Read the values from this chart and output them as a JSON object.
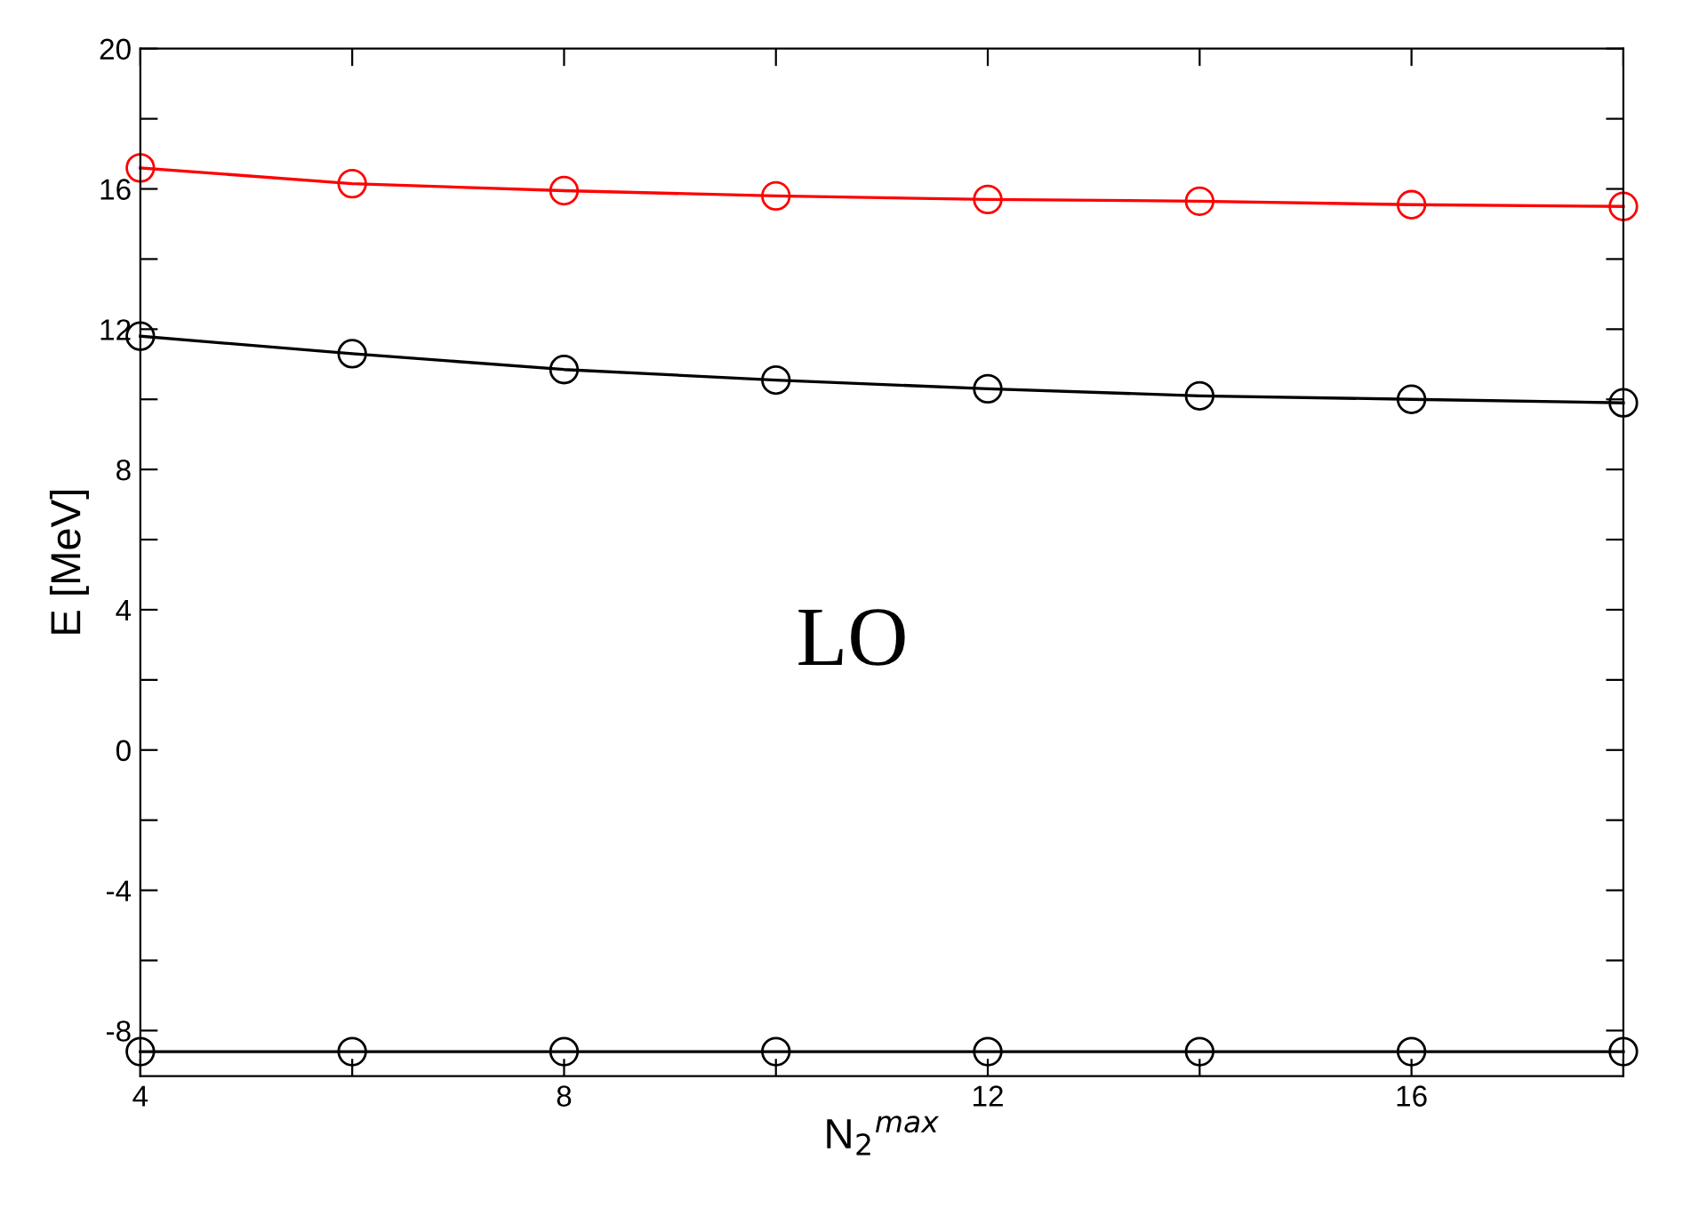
{
  "chart_data": {
    "type": "line",
    "xlabel": "N$_{2}$$^{max}$",
    "ylabel": "E [MeV]",
    "annotations": [
      "LO"
    ],
    "x": [
      4,
      6,
      8,
      10,
      12,
      14,
      16,
      18
    ],
    "series": [
      {
        "color": "#ff0000",
        "values": [
          16.6,
          16.15,
          15.95,
          15.8,
          15.7,
          15.65,
          15.55,
          15.5
        ]
      },
      {
        "color": "#000000",
        "values": [
          11.8,
          11.3,
          10.85,
          10.55,
          10.3,
          10.1,
          10.0,
          9.9
        ]
      },
      {
        "color": "#000000",
        "values": [
          -8.6,
          -8.6,
          -8.6,
          -8.6,
          -8.6,
          -8.6,
          -8.6,
          -8.6
        ]
      }
    ],
    "xlim": [
      4,
      18
    ],
    "ylim": [
      -9.3,
      20
    ],
    "xticks": [
      4,
      {
        "value": 6,
        "label": null
      },
      8,
      {
        "value": 10,
        "label": null
      },
      12,
      {
        "value": 14,
        "label": null
      },
      16,
      {
        "value": 18,
        "label": null
      }
    ],
    "yticks": [
      -8,
      {
        "value": -6,
        "label": null
      },
      -4,
      {
        "value": -2,
        "label": null
      },
      0,
      {
        "value": 2,
        "label": null
      },
      4,
      {
        "value": 6,
        "label": null
      },
      8,
      {
        "value": 10,
        "label": null
      },
      12,
      {
        "value": 14,
        "label": null
      },
      16,
      {
        "value": 18,
        "label": null
      },
      20
    ],
    "marker": "circle",
    "line_style": "solid",
    "grid": false,
    "legend": false
  }
}
